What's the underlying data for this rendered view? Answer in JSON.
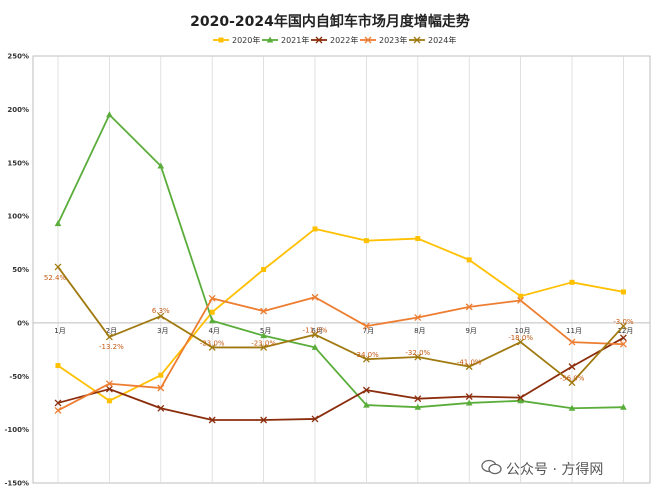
{
  "chart_data": {
    "type": "line",
    "title": "2020-2024年国内自卸车市场月度增幅走势",
    "categories": [
      "1月",
      "2月",
      "3月",
      "4月",
      "5月",
      "6月",
      "7月",
      "8月",
      "9月",
      "10月",
      "11月",
      "12月"
    ],
    "ylim": [
      -150,
      250
    ],
    "yticks": [
      -150,
      -100,
      -50,
      0,
      50,
      100,
      150,
      200,
      250
    ],
    "ytick_labels": [
      "-150%",
      "-100%",
      "-50%",
      "0%",
      "50%",
      "100%",
      "150%",
      "200%",
      "250%"
    ],
    "grid": "vertical",
    "legend": "top-center",
    "series": [
      {
        "name": "2020年",
        "color": "#ffc000",
        "marker": "square",
        "values": [
          -40,
          -73,
          -49,
          10,
          50,
          88,
          77,
          79,
          59,
          25,
          38,
          29
        ]
      },
      {
        "name": "2021年",
        "color": "#5aad3a",
        "marker": "triangle",
        "values": [
          93,
          195,
          147,
          2,
          -12,
          -23,
          -77,
          -79,
          -75,
          -73,
          -80,
          -79
        ]
      },
      {
        "name": "2022年",
        "color": "#8b2d0c",
        "marker": "x",
        "values": [
          -75,
          -62,
          -80,
          -91,
          -91,
          -90,
          -63,
          -71,
          -69,
          -70,
          -41,
          -14
        ]
      },
      {
        "name": "2023年",
        "color": "#ed7d31",
        "marker": "x",
        "values": [
          -82,
          -57,
          -61,
          23,
          11,
          24,
          -3,
          5,
          15,
          21,
          -18,
          -20
        ]
      },
      {
        "name": "2024年",
        "color": "#a07a10",
        "marker": "x",
        "values": [
          52.4,
          -13.2,
          6.3,
          -23.0,
          -23.0,
          -11.0,
          -34.0,
          -32.0,
          -41.0,
          -18.0,
          -56.0,
          -3.0
        ]
      }
    ],
    "data_labels": [
      {
        "series": 4,
        "index": 0,
        "text": "52.4%"
      },
      {
        "series": 4,
        "index": 1,
        "text": "-13.2%"
      },
      {
        "series": 4,
        "index": 2,
        "text": "6.3%"
      },
      {
        "series": 4,
        "index": 3,
        "text": "-23.0%"
      },
      {
        "series": 4,
        "index": 4,
        "text": "-23.0%"
      },
      {
        "series": 4,
        "index": 5,
        "text": "-11.0%"
      },
      {
        "series": 4,
        "index": 6,
        "text": "-34.0%"
      },
      {
        "series": 4,
        "index": 7,
        "text": "-32.0%"
      },
      {
        "series": 4,
        "index": 8,
        "text": "-41.0%"
      },
      {
        "series": 4,
        "index": 9,
        "text": "-18.0%"
      },
      {
        "series": 4,
        "index": 10,
        "text": "-56.0%"
      },
      {
        "series": 4,
        "index": 11,
        "text": "-3.0%"
      }
    ]
  },
  "watermark": "公众号 · 方得网"
}
